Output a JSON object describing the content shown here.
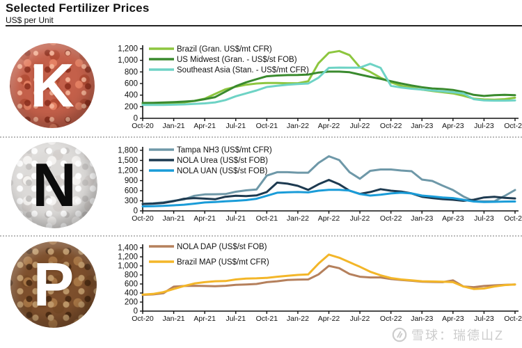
{
  "header": {
    "title": "Selected Fertilizer Prices",
    "subtitle": "US$ per Unit"
  },
  "watermark": {
    "text": "雪球：瑞德山Z",
    "logo": "xueqiu-snowball-logo"
  },
  "chart_data": {
    "type": "line",
    "legend_position": "top-left-inside",
    "grid": false,
    "months": [
      "Oct-20",
      "Nov-20",
      "Dec-20",
      "Jan-21",
      "Feb-21",
      "Mar-21",
      "Apr-21",
      "May-21",
      "Jun-21",
      "Jul-21",
      "Aug-21",
      "Sep-21",
      "Oct-21",
      "Nov-21",
      "Dec-21",
      "Jan-22",
      "Feb-22",
      "Mar-22",
      "Apr-22",
      "May-22",
      "Jun-22",
      "Jul-22",
      "Aug-22",
      "Sep-22",
      "Oct-22",
      "Nov-22",
      "Dec-22",
      "Jan-23",
      "Feb-23",
      "Mar-23",
      "Apr-23",
      "May-23",
      "Jun-23",
      "Jul-23",
      "Aug-23",
      "Sep-23",
      "Oct-23"
    ],
    "x_tick_labels": [
      "Oct-20",
      "Jan-21",
      "Apr-21",
      "Jul-21",
      "Oct-21",
      "Jan-22",
      "Apr-22",
      "Jul-22",
      "Oct-22",
      "Jan-23",
      "Apr-23",
      "Jul-23",
      "Oct-23"
    ],
    "charts": [
      {
        "id": "potash",
        "badge_letter": "K",
        "ylim": [
          0,
          1200
        ],
        "ytick_step": 200,
        "series": [
          {
            "name": "Brazil (Gran. US$/mt CFR)",
            "color": "#8dc63f",
            "values": [
              245,
              245,
              250,
              255,
              275,
              300,
              340,
              420,
              500,
              545,
              580,
              600,
              610,
              610,
              605,
              605,
              640,
              950,
              1130,
              1160,
              1090,
              880,
              800,
              700,
              620,
              560,
              530,
              495,
              470,
              450,
              430,
              390,
              340,
              325,
              320,
              330,
              355
            ]
          },
          {
            "name": "US Midwest (Gran. - US$/st FOB)",
            "color": "#3a8a2e",
            "values": [
              265,
              268,
              272,
              278,
              288,
              300,
              330,
              365,
              460,
              555,
              620,
              675,
              725,
              738,
              745,
              748,
              755,
              790,
              805,
              805,
              795,
              755,
              715,
              680,
              640,
              600,
              565,
              535,
              515,
              505,
              490,
              455,
              405,
              385,
              400,
              405,
              400
            ]
          },
          {
            "name": "Southeast Asia (Stan. - US$/mt CFR)",
            "color": "#6ed3c5",
            "values": [
              230,
              230,
              232,
              235,
              240,
              250,
              258,
              275,
              315,
              380,
              430,
              480,
              540,
              562,
              580,
              590,
              600,
              700,
              870,
              875,
              872,
              875,
              940,
              870,
              560,
              530,
              510,
              495,
              480,
              465,
              450,
              430,
              330,
              310,
              305,
              305,
              310
            ]
          }
        ]
      },
      {
        "id": "nitrogen",
        "badge_letter": "N",
        "ylim": [
          0,
          1800
        ],
        "ytick_step": 300,
        "series": [
          {
            "name": "Tampa NH3 (US$/mt CFR)",
            "color": "#6e98a8",
            "values": [
              210,
              225,
              255,
              300,
              340,
              450,
              490,
              495,
              500,
              570,
              610,
              635,
              1050,
              1150,
              1150,
              1135,
              1135,
              1425,
              1625,
              1510,
              1150,
              955,
              1190,
              1230,
              1230,
              1200,
              1180,
              930,
              890,
              750,
              620,
              430,
              290,
              285,
              285,
              445,
              620
            ]
          },
          {
            "name": "NOLA Urea (US$/st FOB)",
            "color": "#1d3a50",
            "values": [
              205,
              215,
              235,
              290,
              360,
              380,
              365,
              345,
              420,
              450,
              440,
              460,
              560,
              840,
              810,
              745,
              625,
              790,
              920,
              790,
              600,
              505,
              560,
              645,
              600,
              575,
              520,
              420,
              380,
              350,
              330,
              300,
              330,
              400,
              420,
              390,
              370
            ]
          },
          {
            "name": "NOLA UAN (US$/st FOB)",
            "color": "#1a9cd8",
            "values": [
              135,
              140,
              150,
              165,
              185,
              215,
              250,
              265,
              285,
              300,
              320,
              360,
              450,
              540,
              555,
              560,
              550,
              600,
              625,
              625,
              605,
              500,
              455,
              480,
              520,
              540,
              520,
              455,
              430,
              400,
              380,
              330,
              280,
              262,
              268,
              278,
              280
            ]
          }
        ]
      },
      {
        "id": "phosphate",
        "badge_letter": "P",
        "ylim": [
          0,
          1400
        ],
        "ytick_step": 200,
        "series": [
          {
            "name": "NOLA DAP (US$/st FOB)",
            "color": "#b5805c",
            "values": [
              360,
              370,
              395,
              540,
              555,
              560,
              555,
              550,
              560,
              580,
              590,
              600,
              640,
              660,
              690,
              695,
              700,
              810,
              1000,
              950,
              820,
              760,
              745,
              745,
              710,
              690,
              670,
              650,
              645,
              640,
              680,
              545,
              530,
              555,
              570,
              580,
              590
            ]
          },
          {
            "name": "Brazil MAP (US$/mt CFR)",
            "color": "#f3b629",
            "values": [
              365,
              380,
              420,
              490,
              555,
              610,
              640,
              660,
              665,
              700,
              720,
              725,
              735,
              760,
              780,
              800,
              810,
              1050,
              1250,
              1180,
              1080,
              980,
              870,
              790,
              730,
              700,
              680,
              660,
              655,
              650,
              640,
              545,
              490,
              500,
              545,
              575,
              590
            ]
          }
        ]
      }
    ]
  }
}
